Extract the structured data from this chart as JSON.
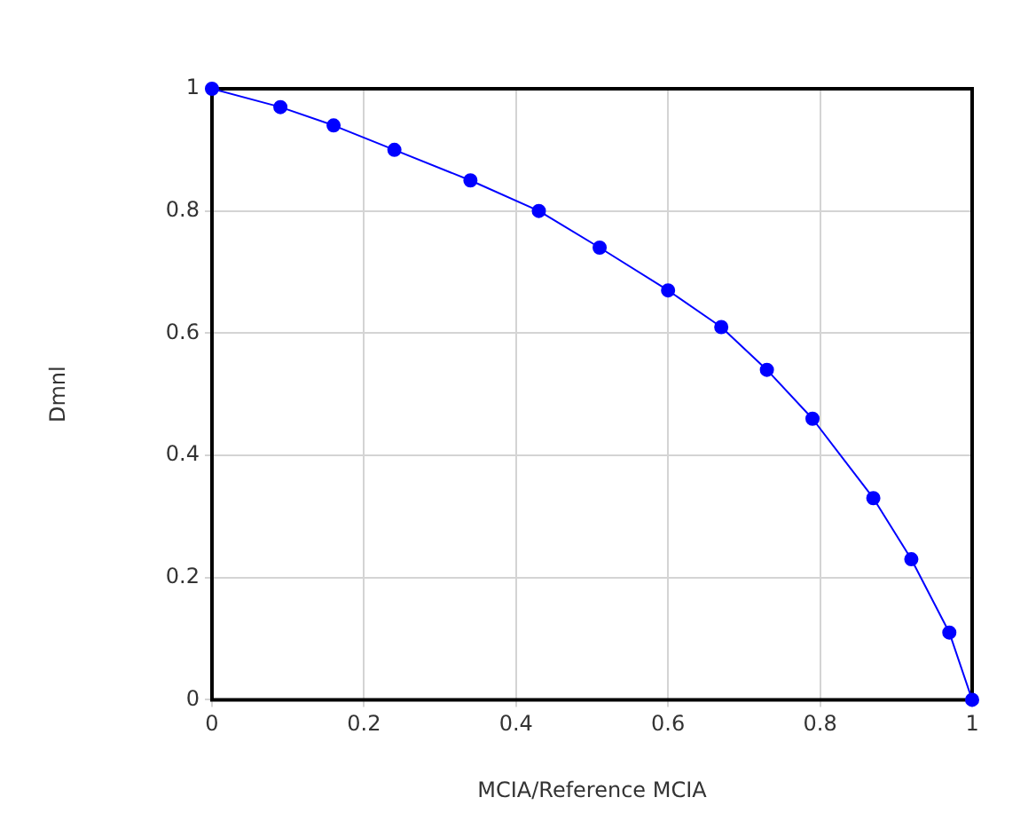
{
  "chart_data": {
    "type": "line",
    "xlabel": "MCIA/Reference MCIA",
    "ylabel": "Dmnl",
    "x": [
      0,
      0.09,
      0.16,
      0.24,
      0.34,
      0.43,
      0.51,
      0.6,
      0.67,
      0.73,
      0.79,
      0.87,
      0.92,
      0.97,
      1
    ],
    "series": [
      {
        "color": "#0000ff",
        "values": [
          1,
          0.97,
          0.94,
          0.9,
          0.85,
          0.8,
          0.74,
          0.67,
          0.61,
          0.54,
          0.46,
          0.33,
          0.23,
          0.11,
          0
        ]
      }
    ],
    "xlim": [
      0,
      1
    ],
    "xticks": [
      0,
      0.2,
      0.4,
      0.6,
      0.8,
      1
    ],
    "ylim": [
      0,
      1
    ],
    "yticks": [
      0,
      0.2,
      0.4,
      0.6,
      0.8,
      1
    ],
    "grid": true,
    "legend": false,
    "marker": "circle",
    "line_style": "solid"
  }
}
